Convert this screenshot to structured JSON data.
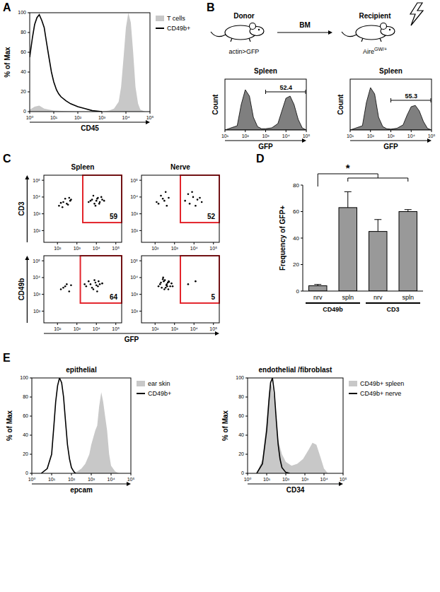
{
  "chart_data": [
    {
      "panel": "A",
      "type": "line",
      "xlabel": "CD45",
      "ylabel": "% of Max",
      "log": "x",
      "xlim": [
        1,
        100000
      ],
      "xticks": [
        {
          "value": 1,
          "label": "10⁰"
        },
        {
          "value": 10,
          "label": "10¹"
        },
        {
          "value": 100,
          "label": "10²"
        },
        {
          "value": 1000,
          "label": "10³"
        },
        {
          "value": 10000,
          "label": "10⁴"
        },
        {
          "value": 100000,
          "label": "10⁵"
        }
      ],
      "ylim": [
        0,
        100
      ],
      "yticks": [
        0,
        20,
        40,
        60,
        80,
        100
      ],
      "legend": "right",
      "series": [
        {
          "name": "T cells",
          "type": "area",
          "color": "#c8c8c8",
          "x": [
            1,
            1.6,
            2.5,
            4,
            10,
            100,
            1000,
            2000,
            3200,
            5000,
            6300,
            8000,
            10000,
            12600,
            16000,
            20000,
            25000,
            32000,
            40000,
            63000,
            100000
          ],
          "values": [
            2,
            5,
            6,
            3,
            1,
            0,
            0,
            1,
            3,
            10,
            25,
            55,
            85,
            100,
            90,
            60,
            25,
            8,
            2,
            0,
            0
          ]
        },
        {
          "name": "CD49b+",
          "type": "line",
          "color": "#000000",
          "x": [
            1,
            1.3,
            1.6,
            2,
            2.5,
            3.2,
            4,
            5,
            6.3,
            8,
            10,
            13,
            16,
            20,
            32,
            50,
            100,
            200,
            400,
            1000
          ],
          "values": [
            55,
            75,
            88,
            95,
            98,
            92,
            85,
            70,
            55,
            40,
            30,
            22,
            18,
            15,
            11,
            8,
            5,
            3,
            1,
            0
          ]
        }
      ]
    },
    {
      "type": "area",
      "title": "Spleen",
      "xlabel": "GFP",
      "ylabel": "Count",
      "log": "x",
      "xlim": [
        10,
        100000
      ],
      "xticks": [
        {
          "value": 10,
          "label": "10¹"
        },
        {
          "value": 100,
          "label": "10²"
        },
        {
          "value": 1000,
          "label": "10³"
        },
        {
          "value": 10000,
          "label": "10⁴"
        },
        {
          "value": 100000,
          "label": "10⁵"
        }
      ],
      "ylim": [
        0,
        120
      ],
      "tick_labels": "x",
      "series": [
        {
          "color": "#7f7f7f",
          "x": [
            10,
            40,
            63,
            100,
            160,
            250,
            400,
            630,
            1000,
            2000,
            4000,
            6300,
            10000,
            16000,
            25000,
            40000,
            63000,
            100000
          ],
          "values": [
            0,
            10,
            60,
            95,
            80,
            30,
            8,
            3,
            3,
            5,
            15,
            45,
            75,
            80,
            60,
            25,
            5,
            0
          ]
        }
      ],
      "gate": {
        "value": 52.4,
        "x": [
          1000,
          100000
        ],
        "y": 90
      }
    },
    {
      "type": "area",
      "title": "Spleen",
      "xlabel": "GFP",
      "ylabel": "Count",
      "log": "x",
      "xlim": [
        10,
        100000
      ],
      "xticks": [
        {
          "value": 10,
          "label": "10¹"
        },
        {
          "value": 100,
          "label": "10²"
        },
        {
          "value": 1000,
          "label": "10³"
        },
        {
          "value": 10000,
          "label": "10⁴"
        },
        {
          "value": 100000,
          "label": "10⁵"
        }
      ],
      "ylim": [
        0,
        120
      ],
      "tick_labels": "x",
      "series": [
        {
          "color": "#7f7f7f",
          "x": [
            10,
            40,
            63,
            100,
            160,
            250,
            400,
            630,
            1000,
            2000,
            4000,
            6300,
            10000,
            16000,
            25000,
            40000,
            63000,
            100000
          ],
          "values": [
            0,
            10,
            65,
            100,
            85,
            30,
            8,
            3,
            2,
            4,
            12,
            35,
            55,
            58,
            45,
            20,
            4,
            0
          ]
        }
      ],
      "gate": {
        "value": 55.3,
        "x": [
          1000,
          100000
        ],
        "y": 70
      }
    },
    {
      "panel": "C",
      "type": "scatter",
      "title": "Spleen",
      "ylabel": "CD3",
      "log": true,
      "xlim": [
        20,
        200000
      ],
      "ylim": [
        20,
        200000
      ],
      "xticks": [
        {
          "value": 100,
          "label": "10²"
        },
        {
          "value": 1000,
          "label": "10³"
        },
        {
          "value": 10000,
          "label": "10⁴"
        },
        {
          "value": 100000,
          "label": "10⁵"
        }
      ],
      "yticks": [
        {
          "value": 100,
          "label": "10²"
        },
        {
          "value": 1000,
          "label": "10³"
        },
        {
          "value": 10000,
          "label": "10⁴"
        },
        {
          "value": 100000,
          "label": "10⁵"
        }
      ],
      "series": [
        {
          "color": "#000000",
          "marker": "dot",
          "x": [
            120,
            200,
            300,
            450,
            250,
            180,
            350,
            500,
            150,
            400,
            4000,
            6000,
            8000,
            10000,
            12000,
            15000,
            20000,
            7000,
            9000,
            11000,
            5000,
            14000,
            25000,
            18000
          ],
          "values": [
            3000,
            5000,
            4000,
            6000,
            8000,
            2500,
            3500,
            7000,
            4500,
            9000,
            5000,
            7000,
            4000,
            6000,
            9000,
            5000,
            7000,
            12000,
            3000,
            8000,
            6000,
            4000,
            6000,
            10000
          ]
        }
      ],
      "gate": {
        "value": 59,
        "x": [
          2000,
          200000
        ],
        "y": [
          300,
          200000
        ]
      }
    },
    {
      "type": "scatter",
      "title": "Nerve",
      "log": true,
      "xlim": [
        20,
        200000
      ],
      "ylim": [
        20,
        200000
      ],
      "xticks": [
        {
          "value": 100,
          "label": "10²"
        },
        {
          "value": 1000,
          "label": "10³"
        },
        {
          "value": 10000,
          "label": "10⁴"
        },
        {
          "value": 100000,
          "label": "10⁵"
        }
      ],
      "yticks": [
        {
          "value": 100,
          "label": "10²"
        },
        {
          "value": 1000,
          "label": "10³"
        },
        {
          "value": 10000,
          "label": "10⁴"
        },
        {
          "value": 100000,
          "label": "10⁵"
        }
      ],
      "series": [
        {
          "color": "#000000",
          "marker": "dot",
          "x": [
            150,
            250,
            400,
            200,
            300,
            120,
            500,
            350,
            3500,
            6000,
            9000,
            15000,
            25000,
            5000,
            12000,
            20000,
            8000
          ],
          "values": [
            4000,
            8000,
            3000,
            12000,
            6000,
            5000,
            9000,
            20000,
            6000,
            4000,
            10000,
            7000,
            5000,
            15000,
            3000,
            9000,
            20000
          ]
        }
      ],
      "gate": {
        "value": 52,
        "x": [
          2000,
          200000
        ],
        "y": [
          300,
          200000
        ]
      }
    },
    {
      "type": "scatter",
      "ylabel": "CD49b",
      "xlabel": "GFP",
      "log": true,
      "xlim": [
        20,
        200000
      ],
      "ylim": [
        20,
        200000
      ],
      "xticks": [
        {
          "value": 100,
          "label": "10²"
        },
        {
          "value": 1000,
          "label": "10³"
        },
        {
          "value": 10000,
          "label": "10⁴"
        },
        {
          "value": 100000,
          "label": "10⁵"
        }
      ],
      "yticks": [
        {
          "value": 100,
          "label": "10²"
        },
        {
          "value": 1000,
          "label": "10³"
        },
        {
          "value": 10000,
          "label": "10⁴"
        },
        {
          "value": 100000,
          "label": "10⁵"
        }
      ],
      "series": [
        {
          "color": "#000000",
          "marker": "dot",
          "x": [
            150,
            250,
            400,
            300,
            200,
            500,
            3000,
            5000,
            7000,
            9000,
            12000,
            15000,
            4000,
            6000,
            8000,
            10000,
            20000,
            11000,
            2500,
            13000
          ],
          "values": [
            2000,
            3000,
            1500,
            4000,
            2500,
            3500,
            3000,
            4000,
            2000,
            5000,
            3000,
            4000,
            6000,
            2500,
            7000,
            3500,
            4500,
            1500,
            4000,
            6000
          ]
        }
      ],
      "gate": {
        "value": 64,
        "x": [
          1500,
          200000
        ],
        "y": [
          300,
          200000
        ]
      }
    },
    {
      "type": "scatter",
      "log": true,
      "xlim": [
        20,
        200000
      ],
      "ylim": [
        20,
        200000
      ],
      "xticks": [
        {
          "value": 100,
          "label": "10²"
        },
        {
          "value": 1000,
          "label": "10³"
        },
        {
          "value": 10000,
          "label": "10⁴"
        },
        {
          "value": 100000,
          "label": "10⁵"
        }
      ],
      "yticks": [
        {
          "value": 100,
          "label": "10²"
        },
        {
          "value": 1000,
          "label": "10³"
        },
        {
          "value": 10000,
          "label": "10⁴"
        },
        {
          "value": 100000,
          "label": "10⁵"
        }
      ],
      "series": [
        {
          "color": "#000000",
          "marker": "dot",
          "x": [
            150,
            200,
            300,
            400,
            500,
            600,
            250,
            350,
            450,
            180,
            280,
            380,
            480,
            700,
            220,
            320,
            420,
            520,
            800,
            260,
            5000,
            12000
          ],
          "values": [
            3000,
            5000,
            2000,
            4000,
            6000,
            3000,
            8000,
            2500,
            5000,
            4000,
            6000,
            3500,
            2000,
            4500,
            2500,
            7000,
            3000,
            5500,
            3000,
            10000,
            4000,
            6000
          ]
        }
      ],
      "gate": {
        "value": 5,
        "x": [
          2000,
          200000
        ],
        "y": [
          300,
          200000
        ]
      }
    },
    {
      "panel": "D",
      "type": "bar",
      "ylabel": "Frequency of GFP+",
      "categories": [
        "nrv",
        "spln",
        "nrv",
        "spln"
      ],
      "values": [
        4,
        63,
        45,
        60
      ],
      "errors": [
        1,
        12,
        9,
        1.5
      ],
      "color": "#999999",
      "ylim": [
        0,
        80
      ],
      "yticks": [
        0,
        20,
        40,
        60,
        80
      ],
      "groups": [
        {
          "name": "CD49b",
          "size": 2
        },
        {
          "name": "CD3",
          "size": 2
        }
      ],
      "significance": {
        "text": "*",
        "from": 0,
        "to": [
          1,
          3
        ]
      }
    },
    {
      "panel": "E",
      "type": "line",
      "title": "epithelial",
      "xlabel": "epcam",
      "ylabel": "% of Max",
      "log": "x",
      "xlim": [
        1,
        100000
      ],
      "xticks": [
        {
          "value": 1,
          "label": "10⁰"
        },
        {
          "value": 10,
          "label": "10¹"
        },
        {
          "value": 100,
          "label": "10²"
        },
        {
          "value": 1000,
          "label": "10³"
        },
        {
          "value": 10000,
          "label": "10⁴"
        },
        {
          "value": 100000,
          "label": "10⁵"
        }
      ],
      "ylim": [
        0,
        100
      ],
      "yticks": [
        0,
        20,
        40,
        60,
        80,
        100
      ],
      "legend": "right",
      "series": [
        {
          "name": "ear skin",
          "type": "area",
          "color": "#c8c8c8",
          "x": [
            100,
            200,
            320,
            500,
            800,
            1000,
            1600,
            2000,
            2500,
            3200,
            4000,
            5000,
            6300,
            8000,
            10000,
            16000,
            25000
          ],
          "values": [
            0,
            2,
            5,
            10,
            20,
            30,
            45,
            50,
            70,
            85,
            75,
            60,
            45,
            20,
            8,
            2,
            0
          ]
        },
        {
          "name": "CD49b+",
          "type": "line",
          "color": "#000000",
          "x": [
            3,
            6,
            10,
            13,
            16,
            20,
            25,
            32,
            40,
            50,
            63,
            80,
            100,
            130,
            160
          ],
          "values": [
            0,
            5,
            20,
            50,
            75,
            92,
            100,
            95,
            80,
            55,
            30,
            15,
            6,
            2,
            0
          ]
        }
      ]
    },
    {
      "type": "line",
      "title": "endothelial /fibroblast",
      "xlabel": "CD34",
      "ylabel": "% of Max",
      "log": "x",
      "xlim": [
        1,
        100000
      ],
      "xticks": [
        {
          "value": 1,
          "label": "10⁰"
        },
        {
          "value": 10,
          "label": "10¹"
        },
        {
          "value": 100,
          "label": "10²"
        },
        {
          "value": 1000,
          "label": "10³"
        },
        {
          "value": 10000,
          "label": "10⁴"
        },
        {
          "value": 100000,
          "label": "10⁵"
        }
      ],
      "ylim": [
        0,
        100
      ],
      "yticks": [
        0,
        20,
        40,
        60,
        80,
        100
      ],
      "legend": "right",
      "series": [
        {
          "name": "CD49b+ spleen",
          "type": "area",
          "color": "#c8c8c8",
          "x": [
            3,
            6,
            10,
            13,
            16,
            20,
            25,
            32,
            40,
            63,
            100,
            200,
            400,
            800,
            1600,
            2500,
            4000,
            6300,
            10000,
            16000
          ],
          "values": [
            0,
            15,
            55,
            85,
            95,
            90,
            75,
            50,
            35,
            20,
            12,
            8,
            10,
            15,
            25,
            32,
            30,
            18,
            5,
            0
          ]
        },
        {
          "name": "CD49b+ nerve",
          "type": "line",
          "color": "#000000",
          "x": [
            3,
            6,
            10,
            13,
            16,
            20,
            25,
            32,
            40,
            50,
            63,
            100,
            160
          ],
          "values": [
            0,
            10,
            45,
            75,
            95,
            100,
            85,
            55,
            30,
            15,
            6,
            1,
            0
          ]
        }
      ]
    }
  ],
  "diagram": {
    "panel": "B",
    "donor": "Donor",
    "recipient": "Recipient",
    "transfer": "BM",
    "donor_strain": "actin>GFP",
    "recipient_strain": {
      "text": "Aire",
      "sup": "GW/+"
    }
  }
}
